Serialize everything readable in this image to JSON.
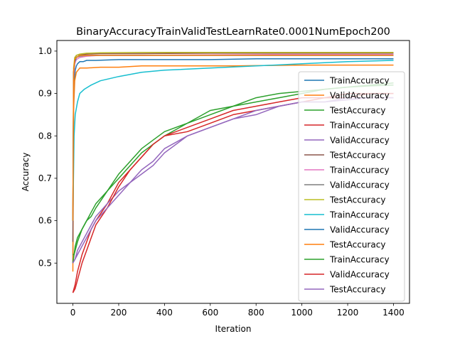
{
  "chart_data": {
    "type": "line",
    "title": "BinaryAccuracyTrainValidTestLearnRate0.0001NumEpoch200",
    "xlabel": "Iteration",
    "ylabel": "Accuracy",
    "xlim": [
      -70,
      1470
    ],
    "ylim": [
      0.405,
      1.025
    ],
    "xticks": [
      0,
      200,
      400,
      600,
      800,
      1000,
      1200,
      1400
    ],
    "yticks": [
      0.5,
      0.6,
      0.7,
      0.8,
      0.9,
      1.0
    ],
    "xtick_labels": [
      "0",
      "200",
      "400",
      "600",
      "800",
      "1000",
      "1200",
      "1400"
    ],
    "ytick_labels": [
      "0.5",
      "0.6",
      "0.7",
      "0.8",
      "0.9",
      "1.0"
    ],
    "grid": false,
    "legend_position": "right",
    "series": [
      {
        "name": "TrainAccuracy",
        "color": "#1f77b4",
        "x": [
          0,
          3,
          6,
          10,
          15,
          20,
          30,
          45,
          60,
          100,
          200,
          400,
          600,
          800,
          1000,
          1200,
          1400
        ],
        "y": [
          0.5,
          0.88,
          0.93,
          0.955,
          0.965,
          0.97,
          0.975,
          0.975,
          0.978,
          0.978,
          0.98,
          0.98,
          0.98,
          0.982,
          0.982,
          0.982,
          0.982
        ]
      },
      {
        "name": "ValidAccuracy",
        "color": "#ff7f0e",
        "x": [
          0,
          3,
          8,
          15,
          30,
          60,
          120,
          200,
          300,
          500,
          700,
          1000,
          1200,
          1400
        ],
        "y": [
          0.48,
          0.86,
          0.93,
          0.95,
          0.96,
          0.96,
          0.962,
          0.962,
          0.965,
          0.965,
          0.965,
          0.967,
          0.967,
          0.967
        ]
      },
      {
        "name": "TestAccuracy",
        "color": "#2ca02c",
        "x": [
          0,
          5,
          10,
          20,
          40,
          60,
          80,
          100,
          150,
          200,
          250,
          300,
          350,
          400,
          500,
          600,
          700,
          800,
          900,
          1000,
          1100,
          1200,
          1300,
          1400
        ],
        "y": [
          0.5,
          0.52,
          0.53,
          0.55,
          0.58,
          0.6,
          0.61,
          0.63,
          0.67,
          0.71,
          0.74,
          0.77,
          0.79,
          0.81,
          0.83,
          0.86,
          0.87,
          0.89,
          0.9,
          0.905,
          0.91,
          0.915,
          0.918,
          0.92
        ]
      },
      {
        "name": "TrainAccuracy",
        "color": "#d62728",
        "x": [
          0,
          10,
          20,
          40,
          60,
          80,
          100,
          150,
          200,
          250,
          300,
          350,
          400,
          500,
          600,
          700,
          800,
          900,
          1000,
          1100,
          1200,
          1300,
          1400
        ],
        "y": [
          0.43,
          0.45,
          0.48,
          0.52,
          0.55,
          0.58,
          0.6,
          0.64,
          0.69,
          0.72,
          0.75,
          0.78,
          0.8,
          0.81,
          0.83,
          0.85,
          0.86,
          0.87,
          0.88,
          0.89,
          0.89,
          0.9,
          0.9
        ]
      },
      {
        "name": "ValidAccuracy",
        "color": "#9467bd",
        "x": [
          0,
          10,
          20,
          40,
          60,
          80,
          100,
          150,
          200,
          250,
          300,
          350,
          400,
          500,
          600,
          700,
          800,
          900,
          1000,
          1100,
          1200,
          1300,
          1400
        ],
        "y": [
          0.5,
          0.51,
          0.53,
          0.55,
          0.57,
          0.59,
          0.61,
          0.64,
          0.67,
          0.69,
          0.72,
          0.74,
          0.77,
          0.8,
          0.82,
          0.84,
          0.85,
          0.87,
          0.88,
          0.88,
          0.89,
          0.89,
          0.89
        ]
      },
      {
        "name": "TestAccuracy",
        "color": "#8c564b",
        "x": [
          0,
          3,
          8,
          15,
          30,
          60,
          120,
          300,
          600,
          900,
          1200,
          1400
        ],
        "y": [
          0.55,
          0.95,
          0.98,
          0.99,
          0.992,
          0.993,
          0.994,
          0.994,
          0.995,
          0.995,
          0.995,
          0.995
        ]
      },
      {
        "name": "TrainAccuracy",
        "color": "#e377c2",
        "x": [
          0,
          3,
          8,
          15,
          30,
          60,
          120,
          300,
          600,
          900,
          1200,
          1400
        ],
        "y": [
          0.6,
          0.93,
          0.97,
          0.98,
          0.985,
          0.988,
          0.99,
          0.99,
          0.991,
          0.992,
          0.992,
          0.992
        ]
      },
      {
        "name": "ValidAccuracy",
        "color": "#7f7f7f",
        "x": [
          0,
          3,
          8,
          15,
          30,
          60,
          120,
          300,
          600,
          900,
          1200,
          1400
        ],
        "y": [
          0.6,
          0.95,
          0.975,
          0.985,
          0.988,
          0.99,
          0.99,
          0.99,
          0.99,
          0.99,
          0.99,
          0.99
        ]
      },
      {
        "name": "TestAccuracy",
        "color": "#bcbd22",
        "x": [
          0,
          3,
          8,
          15,
          30,
          60,
          120,
          300,
          600,
          900,
          1200,
          1400
        ],
        "y": [
          0.6,
          0.96,
          0.985,
          0.99,
          0.993,
          0.995,
          0.996,
          0.997,
          0.997,
          0.997,
          0.997,
          0.997
        ]
      },
      {
        "name": "TrainAccuracy",
        "color": "#17becf",
        "x": [
          0,
          5,
          10,
          20,
          30,
          50,
          80,
          120,
          200,
          300,
          400,
          600,
          800,
          1000,
          1200,
          1400
        ],
        "y": [
          0.6,
          0.8,
          0.85,
          0.88,
          0.9,
          0.91,
          0.92,
          0.93,
          0.94,
          0.95,
          0.955,
          0.96,
          0.965,
          0.97,
          0.975,
          0.978
        ]
      },
      {
        "name": "ValidAccuracy",
        "color": "#1f77b4",
        "x": [
          0,
          3,
          8,
          15,
          30,
          60,
          120,
          300,
          600,
          900,
          1200,
          1400
        ],
        "y": [
          0.6,
          0.95,
          0.975,
          0.985,
          0.99,
          0.99,
          0.99,
          0.99,
          0.99,
          0.99,
          0.99,
          0.99
        ]
      },
      {
        "name": "TestAccuracy",
        "color": "#ff7f0e",
        "x": [
          0,
          3,
          8,
          15,
          30,
          60,
          120,
          300,
          600,
          900,
          1200,
          1400
        ],
        "y": [
          0.6,
          0.95,
          0.98,
          0.985,
          0.99,
          0.99,
          0.99,
          0.99,
          0.99,
          0.99,
          0.99,
          0.99
        ]
      },
      {
        "name": "TrainAccuracy",
        "color": "#2ca02c",
        "x": [
          0,
          5,
          10,
          20,
          40,
          60,
          80,
          100,
          150,
          200,
          250,
          300,
          350,
          400,
          500,
          600,
          700,
          800,
          900,
          1000,
          1100,
          1200,
          1300,
          1400
        ],
        "y": [
          0.52,
          0.52,
          0.54,
          0.56,
          0.58,
          0.6,
          0.62,
          0.64,
          0.67,
          0.7,
          0.73,
          0.76,
          0.78,
          0.8,
          0.83,
          0.85,
          0.87,
          0.88,
          0.89,
          0.9,
          0.91,
          0.915,
          0.92,
          0.925
        ]
      },
      {
        "name": "ValidAccuracy",
        "color": "#d62728",
        "x": [
          0,
          10,
          20,
          40,
          60,
          80,
          100,
          150,
          200,
          250,
          300,
          350,
          400,
          500,
          600,
          700,
          800,
          900,
          1000,
          1100,
          1200,
          1300,
          1400
        ],
        "y": [
          0.43,
          0.44,
          0.46,
          0.5,
          0.53,
          0.56,
          0.59,
          0.63,
          0.68,
          0.72,
          0.75,
          0.78,
          0.8,
          0.82,
          0.84,
          0.86,
          0.87,
          0.88,
          0.89,
          0.89,
          0.9,
          0.9,
          0.9
        ]
      },
      {
        "name": "TestAccuracy",
        "color": "#9467bd",
        "x": [
          0,
          10,
          20,
          40,
          60,
          80,
          100,
          150,
          200,
          250,
          300,
          350,
          400,
          500,
          600,
          700,
          800,
          900,
          1000,
          1100,
          1200,
          1300,
          1400
        ],
        "y": [
          0.5,
          0.51,
          0.52,
          0.54,
          0.56,
          0.58,
          0.6,
          0.63,
          0.66,
          0.69,
          0.71,
          0.73,
          0.76,
          0.8,
          0.82,
          0.84,
          0.86,
          0.87,
          0.88,
          0.88,
          0.885,
          0.89,
          0.89
        ]
      }
    ]
  }
}
